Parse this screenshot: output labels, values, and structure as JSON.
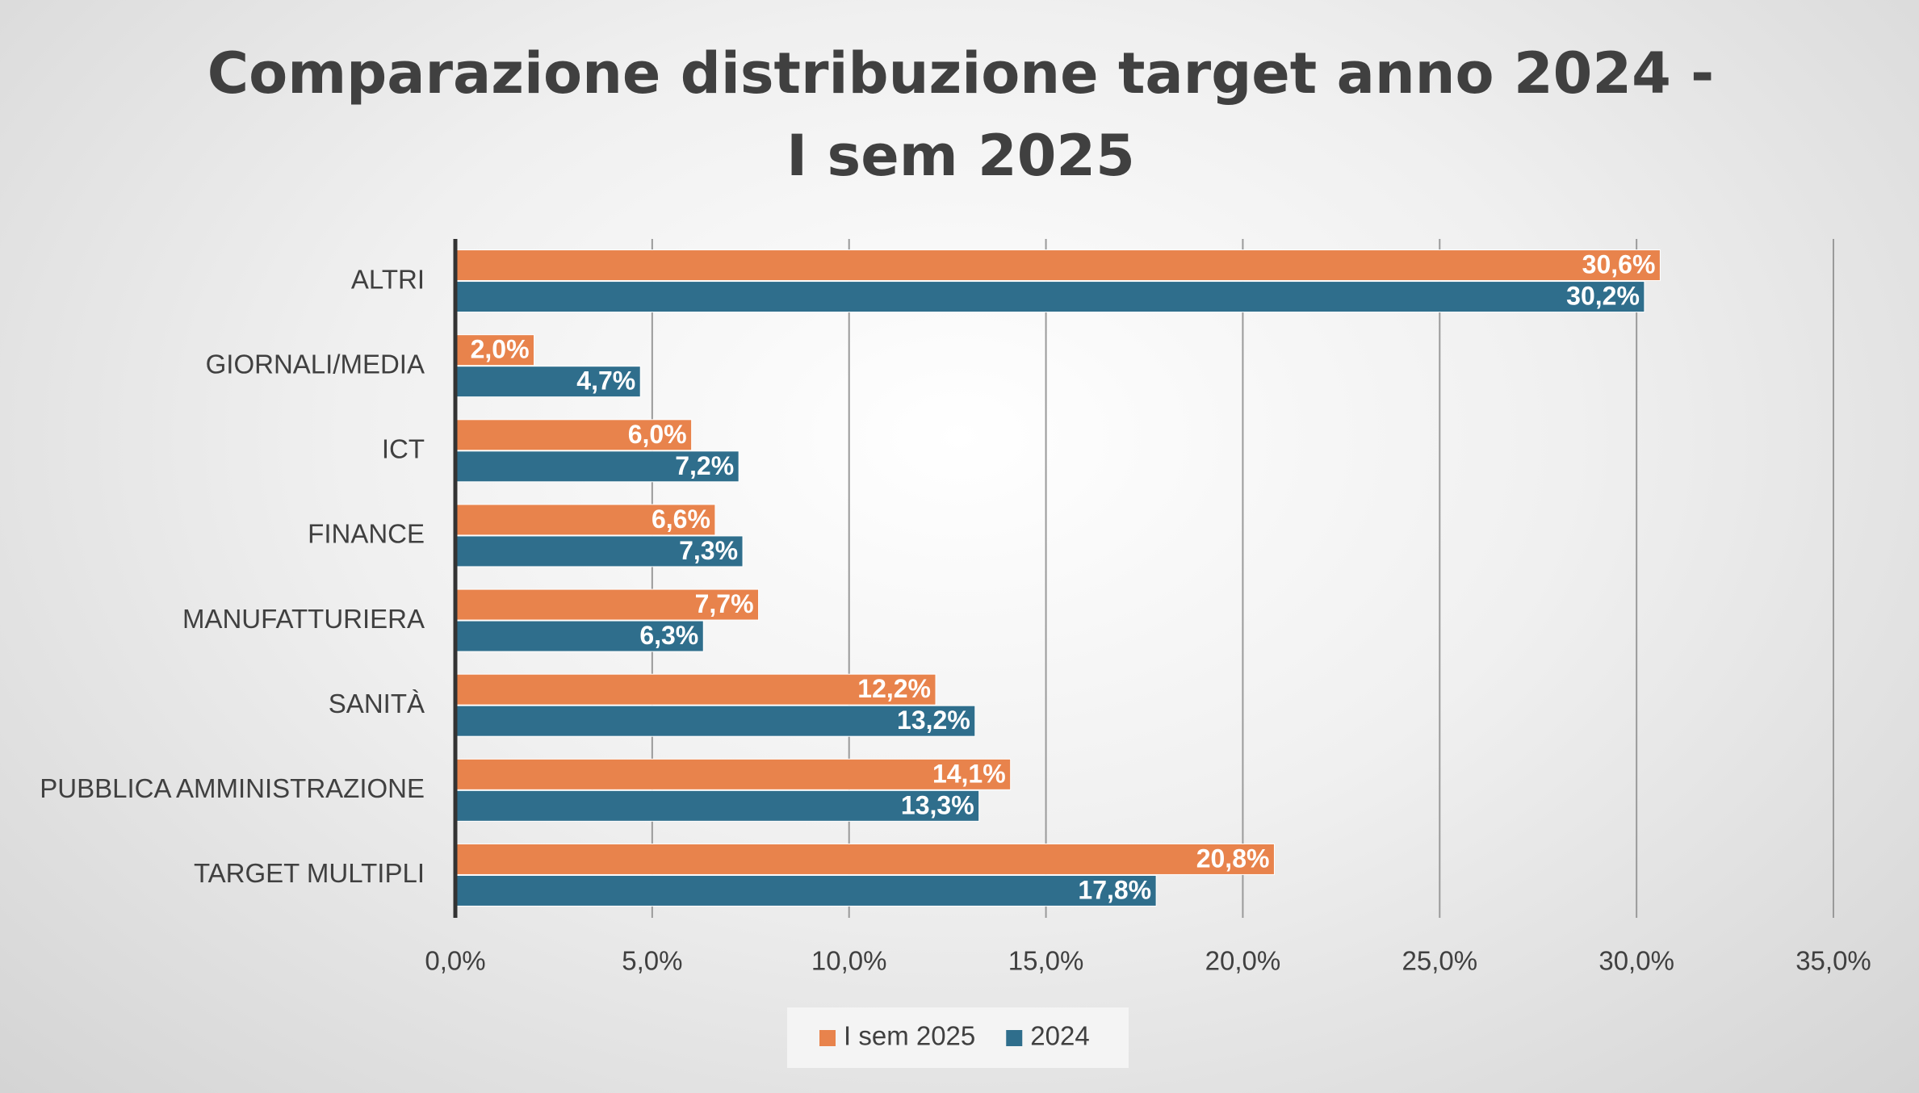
{
  "chart_data": {
    "type": "hbar",
    "title": "Comparazione distribuzione target anno 2024 - I sem 2025",
    "categories": [
      "ALTRI",
      "GIORNALI/MEDIA",
      "ICT",
      "FINANCE",
      "MANUFATTURIERA",
      "SANITÀ",
      "PUBBLICA AMMINISTRAZIONE",
      "TARGET MULTIPLI"
    ],
    "series": [
      {
        "name": "I sem 2025",
        "color": "#e8834c",
        "values": [
          30.6,
          2.0,
          6.0,
          6.6,
          7.7,
          12.2,
          14.1,
          20.8
        ],
        "value_labels": [
          "30,6%",
          "2,0%",
          "6,0%",
          "6,6%",
          "7,7%",
          "12,2%",
          "14,1%",
          "20,8%"
        ]
      },
      {
        "name": "2024",
        "color": "#2f6e8c",
        "values": [
          30.2,
          4.7,
          7.2,
          7.3,
          6.3,
          13.2,
          13.3,
          17.8
        ],
        "value_labels": [
          "30,2%",
          "4,7%",
          "7,2%",
          "7,3%",
          "6,3%",
          "13,2%",
          "13,3%",
          "17,8%"
        ]
      }
    ],
    "xlim": [
      0,
      35
    ],
    "xticks": [
      {
        "value": 0,
        "label": "0,0%"
      },
      {
        "value": 5,
        "label": "5,0%"
      },
      {
        "value": 10,
        "label": "10,0%"
      },
      {
        "value": 15,
        "label": "15,0%"
      },
      {
        "value": 20,
        "label": "20,0%"
      },
      {
        "value": 25,
        "label": "25,0%"
      },
      {
        "value": 30,
        "label": "30,0%"
      },
      {
        "value": 35,
        "label": "35,0%"
      }
    ],
    "grid": true,
    "legend": "bottom"
  }
}
